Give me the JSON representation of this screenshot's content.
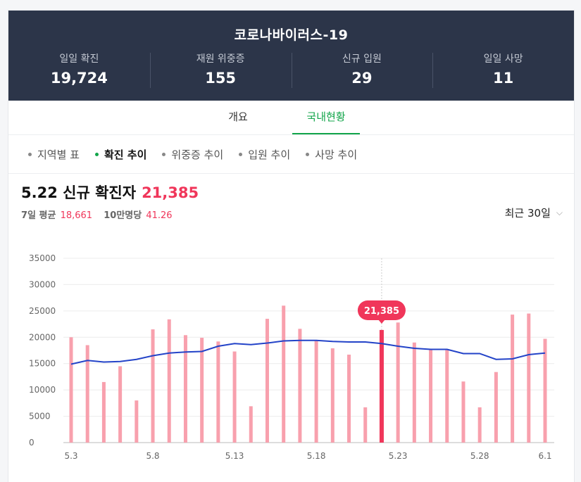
{
  "header": {
    "title": "코로나바이러스-19",
    "stats": [
      {
        "label": "일일 확진",
        "value": "19,724"
      },
      {
        "label": "재원 위중증",
        "value": "155"
      },
      {
        "label": "신규 입원",
        "value": "29"
      },
      {
        "label": "일일 사망",
        "value": "11"
      }
    ]
  },
  "tabs": [
    {
      "label": "개요"
    },
    {
      "label": "국내현황"
    }
  ],
  "subnav": [
    {
      "label": "지역별 표"
    },
    {
      "label": "확진 추이"
    },
    {
      "label": "위중증 추이"
    },
    {
      "label": "입원 추이"
    },
    {
      "label": "사망 추이"
    }
  ],
  "headline": {
    "date": "5.22",
    "text": "신규 확진자",
    "value": "21,385",
    "avg_label": "7일 평균",
    "avg_value": "18,661",
    "per_label": "10만명당",
    "per_value": "41.26"
  },
  "range_select": {
    "label": "최근 30일"
  },
  "chart_data": {
    "type": "bar",
    "y_ticks": [
      "35000",
      "30000",
      "25000",
      "20000",
      "15000",
      "10000",
      "5000",
      "0"
    ],
    "ylim": [
      0,
      35000
    ],
    "x_tick_labels": [
      "5.3",
      "5.8",
      "5.13",
      "5.18",
      "5.23",
      "5.28",
      "6.1"
    ],
    "x_tick_index": [
      0,
      5,
      10,
      15,
      20,
      25,
      29
    ],
    "x": [
      "5.3",
      "5.4",
      "5.5",
      "5.6",
      "5.7",
      "5.8",
      "5.9",
      "5.10",
      "5.11",
      "5.12",
      "5.13",
      "5.14",
      "5.15",
      "5.16",
      "5.17",
      "5.18",
      "5.19",
      "5.20",
      "5.21",
      "5.22",
      "5.23",
      "5.24",
      "5.25",
      "5.26",
      "5.27",
      "5.28",
      "5.29",
      "5.30",
      "5.31",
      "6.1"
    ],
    "series": [
      {
        "type": "bar",
        "values": [
          20000,
          18500,
          11500,
          14500,
          8000,
          21500,
          23400,
          20400,
          19900,
          19200,
          17300,
          6900,
          23500,
          26000,
          21600,
          19300,
          17900,
          16700,
          6700,
          21385,
          22800,
          19000,
          17700,
          17600,
          11600,
          6700,
          13400,
          24300,
          24500,
          19700
        ],
        "color": "#f8a0ad"
      },
      {
        "type": "line",
        "values": [
          14900,
          15600,
          15300,
          15400,
          15800,
          16500,
          17000,
          17200,
          17300,
          18300,
          18800,
          18600,
          18900,
          19300,
          19400,
          19400,
          19200,
          19100,
          19100,
          18800,
          18300,
          17900,
          17700,
          17700,
          16900,
          16900,
          15800,
          15900,
          16700,
          17000
        ],
        "color": "#2343c8"
      }
    ],
    "highlight": {
      "index": 19,
      "label": "21,385",
      "color": "#f0365a"
    }
  }
}
